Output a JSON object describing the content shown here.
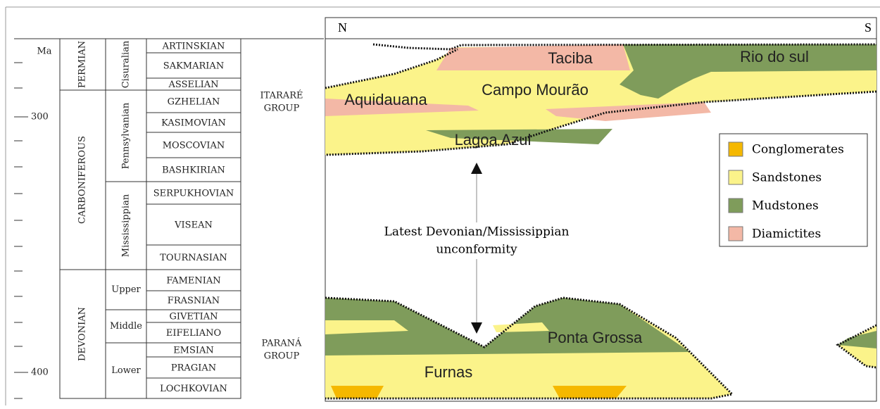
{
  "header": {
    "north": "N",
    "south": "S"
  },
  "time_scale": {
    "unit": "Ma",
    "ticks": [
      "300",
      "400"
    ]
  },
  "periods": [
    "PERMIAN",
    "CARBONIFEROUS",
    "DEVONIAN"
  ],
  "epochs": [
    "Cisuralian",
    "Pennsylvanian",
    "Mississippian",
    "Upper",
    "Middle",
    "Lower"
  ],
  "stages": [
    "ARTINSKIAN",
    "SAKMARIAN",
    "ASSELIAN",
    "GZHELIAN",
    "KASIMOVIAN",
    "MOSCOVIAN",
    "BASHKIRIAN",
    "SERPUKHOVIAN",
    "VISEAN",
    "TOURNASIAN",
    "FAMENIAN",
    "FRASNIAN",
    "GIVETIAN",
    "EIFELIANO",
    "EMSIAN",
    "PRAGIAN",
    "LOCHKOVIAN"
  ],
  "groups": [
    {
      "lines": [
        "ITARARÉ",
        "GROUP"
      ]
    },
    {
      "lines": [
        "PARANÁ",
        "GROUP"
      ]
    }
  ],
  "formations": [
    "Taciba",
    "Rio do sul",
    "Aquidauana",
    "Campo Mourão",
    "Lagoa Azul",
    "Ponta Grossa",
    "Furnas"
  ],
  "annotation": {
    "lines": [
      "Latest Devonian/Mississippian",
      "unconformity"
    ]
  },
  "legend": [
    {
      "label": "Conglomerates",
      "color": "#f5b800"
    },
    {
      "label": "Sandstones",
      "color": "#fbf38a"
    },
    {
      "label": "Mudstones",
      "color": "#7f9c5b"
    },
    {
      "label": "Diamictites",
      "color": "#f3b8a6"
    }
  ]
}
